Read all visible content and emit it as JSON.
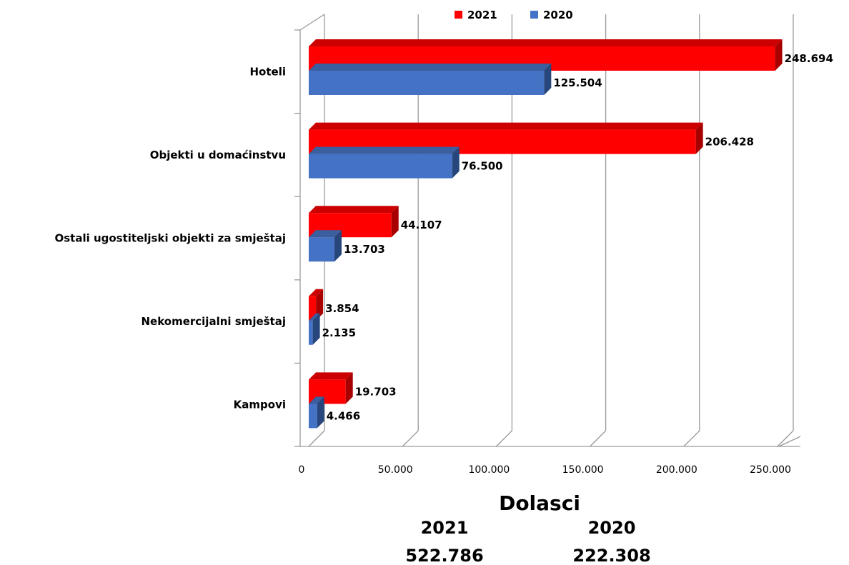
{
  "chart_data": {
    "type": "bar",
    "orientation": "horizontal",
    "style": "3d",
    "categories": [
      "Hoteli",
      "Objekti u domaćinstvu",
      "Ostali ugostiteljski  objekti za smještaj",
      "Nekomercijalni smještaj",
      "Kampovi"
    ],
    "series": [
      {
        "name": "2021",
        "color": "#ff0000",
        "values": [
          248694,
          206428,
          44107,
          3854,
          19703
        ],
        "labels": [
          "248.694",
          "206.428",
          "44.107",
          "3.854",
          "19.703"
        ]
      },
      {
        "name": "2020",
        "color": "#4472c4",
        "values": [
          125504,
          76500,
          13703,
          2135,
          4466
        ],
        "labels": [
          "125.504",
          "76.500",
          "13.703",
          "2.135",
          "4.466"
        ]
      }
    ],
    "xlim": [
      0,
      250000
    ],
    "xticks": [
      0,
      50000,
      100000,
      150000,
      200000,
      250000
    ],
    "xtick_labels": [
      "0",
      "50.000",
      "100.000",
      "150.000",
      "200.000",
      "250.000"
    ],
    "xlabel": "Dolasci",
    "ylabel": "",
    "grid": true,
    "legend_position": "top",
    "totals": [
      {
        "year": "2021",
        "value": "522.786"
      },
      {
        "year": "2020",
        "value": "222.308"
      }
    ]
  }
}
